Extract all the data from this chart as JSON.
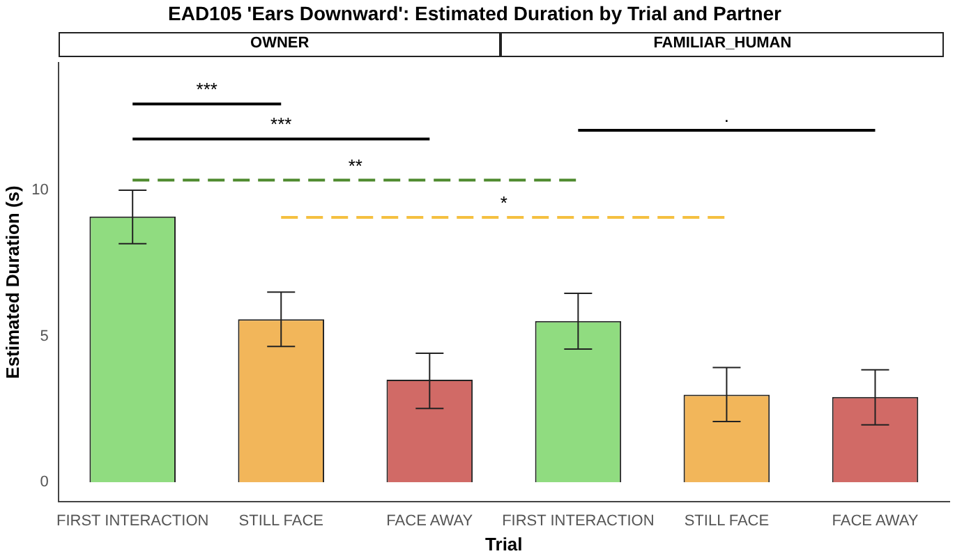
{
  "chart_data": {
    "type": "bar",
    "title": "EAD105 'Ears Downward': Estimated Duration by Trial and Partner",
    "xlabel": "Trial",
    "ylabel": "Estimated Duration (s)",
    "categories": [
      "FIRST INTERACTION",
      "STILL FACE",
      "FACE AWAY",
      "FIRST INTERACTION",
      "STILL FACE",
      "FACE AWAY"
    ],
    "values": [
      9.1,
      5.58,
      3.51,
      5.52,
      3.0,
      2.92
    ],
    "colors": [
      "#90dc80",
      "#f2b65a",
      "#d16a66",
      "#90dc80",
      "#f2b65a",
      "#d16a66"
    ],
    "errors": [
      [
        8.17,
        10.0
      ],
      [
        4.65,
        6.51
      ],
      [
        2.53,
        4.42
      ],
      [
        4.56,
        6.47
      ],
      [
        2.08,
        3.93
      ],
      [
        1.97,
        3.85
      ]
    ],
    "ylim": [
      -0.67,
      14.37
    ],
    "yticks": [
      0,
      5,
      10
    ],
    "grid": false,
    "annotations": [
      "OWNER",
      "FAMILIAR_HUMAN",
      "***",
      "***",
      "**",
      "*",
      "."
    ]
  }
}
